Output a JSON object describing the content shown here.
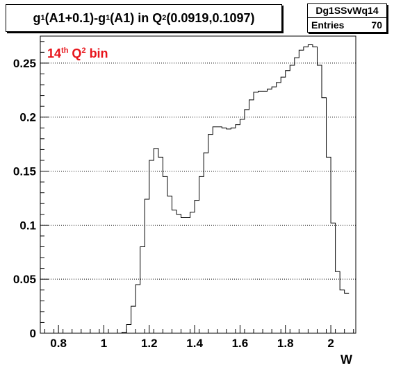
{
  "title_parts": {
    "a": "g",
    "a_sub": "1",
    "b": "(A1+0.1)-g",
    "b_sub": "1",
    "c": "(A1) in Q",
    "c_sup": "2",
    "d": "(0.0919,0.1097)"
  },
  "stats": {
    "name": "Dg1SSvWq14",
    "entries_label": "Entries",
    "entries_value": "70"
  },
  "annotation": {
    "pre": "14",
    "pre_sup": "th",
    "mid": " Q",
    "mid_sup": "2",
    "post": " bin",
    "color": "#e8141b"
  },
  "chart_data": {
    "type": "histogram",
    "title": "g1(A1+0.1)-g1(A1) in Q2(0.0919,0.1097)",
    "xlabel": "W",
    "ylabel": "",
    "xlim": [
      0.72,
      2.11
    ],
    "ylim": [
      0,
      0.275
    ],
    "x_ticks": [
      0.8,
      1.0,
      1.2,
      1.4,
      1.6,
      1.8,
      2.0
    ],
    "x_tick_labels": [
      "0.8",
      "1",
      "1.2",
      "1.4",
      "1.6",
      "1.8",
      "2"
    ],
    "y_ticks": [
      0,
      0.05,
      0.1,
      0.15,
      0.2,
      0.25
    ],
    "y_tick_labels": [
      "0",
      "0.05",
      "0.1",
      "0.15",
      "0.2",
      "0.25"
    ],
    "grid": "horizontal dotted",
    "line_color": "#000000",
    "bin_width": 0.02,
    "x_start": 1.08,
    "values": [
      0.001,
      0.008,
      0.025,
      0.045,
      0.08,
      0.124,
      0.16,
      0.171,
      0.163,
      0.145,
      0.127,
      0.114,
      0.11,
      0.107,
      0.107,
      0.112,
      0.123,
      0.145,
      0.167,
      0.184,
      0.191,
      0.191,
      0.19,
      0.189,
      0.19,
      0.193,
      0.198,
      0.207,
      0.216,
      0.223,
      0.224,
      0.224,
      0.226,
      0.228,
      0.232,
      0.237,
      0.243,
      0.248,
      0.255,
      0.262,
      0.265,
      0.267,
      0.265,
      0.248,
      0.218,
      0.163,
      0.102,
      0.057,
      0.04,
      0.037
    ]
  }
}
